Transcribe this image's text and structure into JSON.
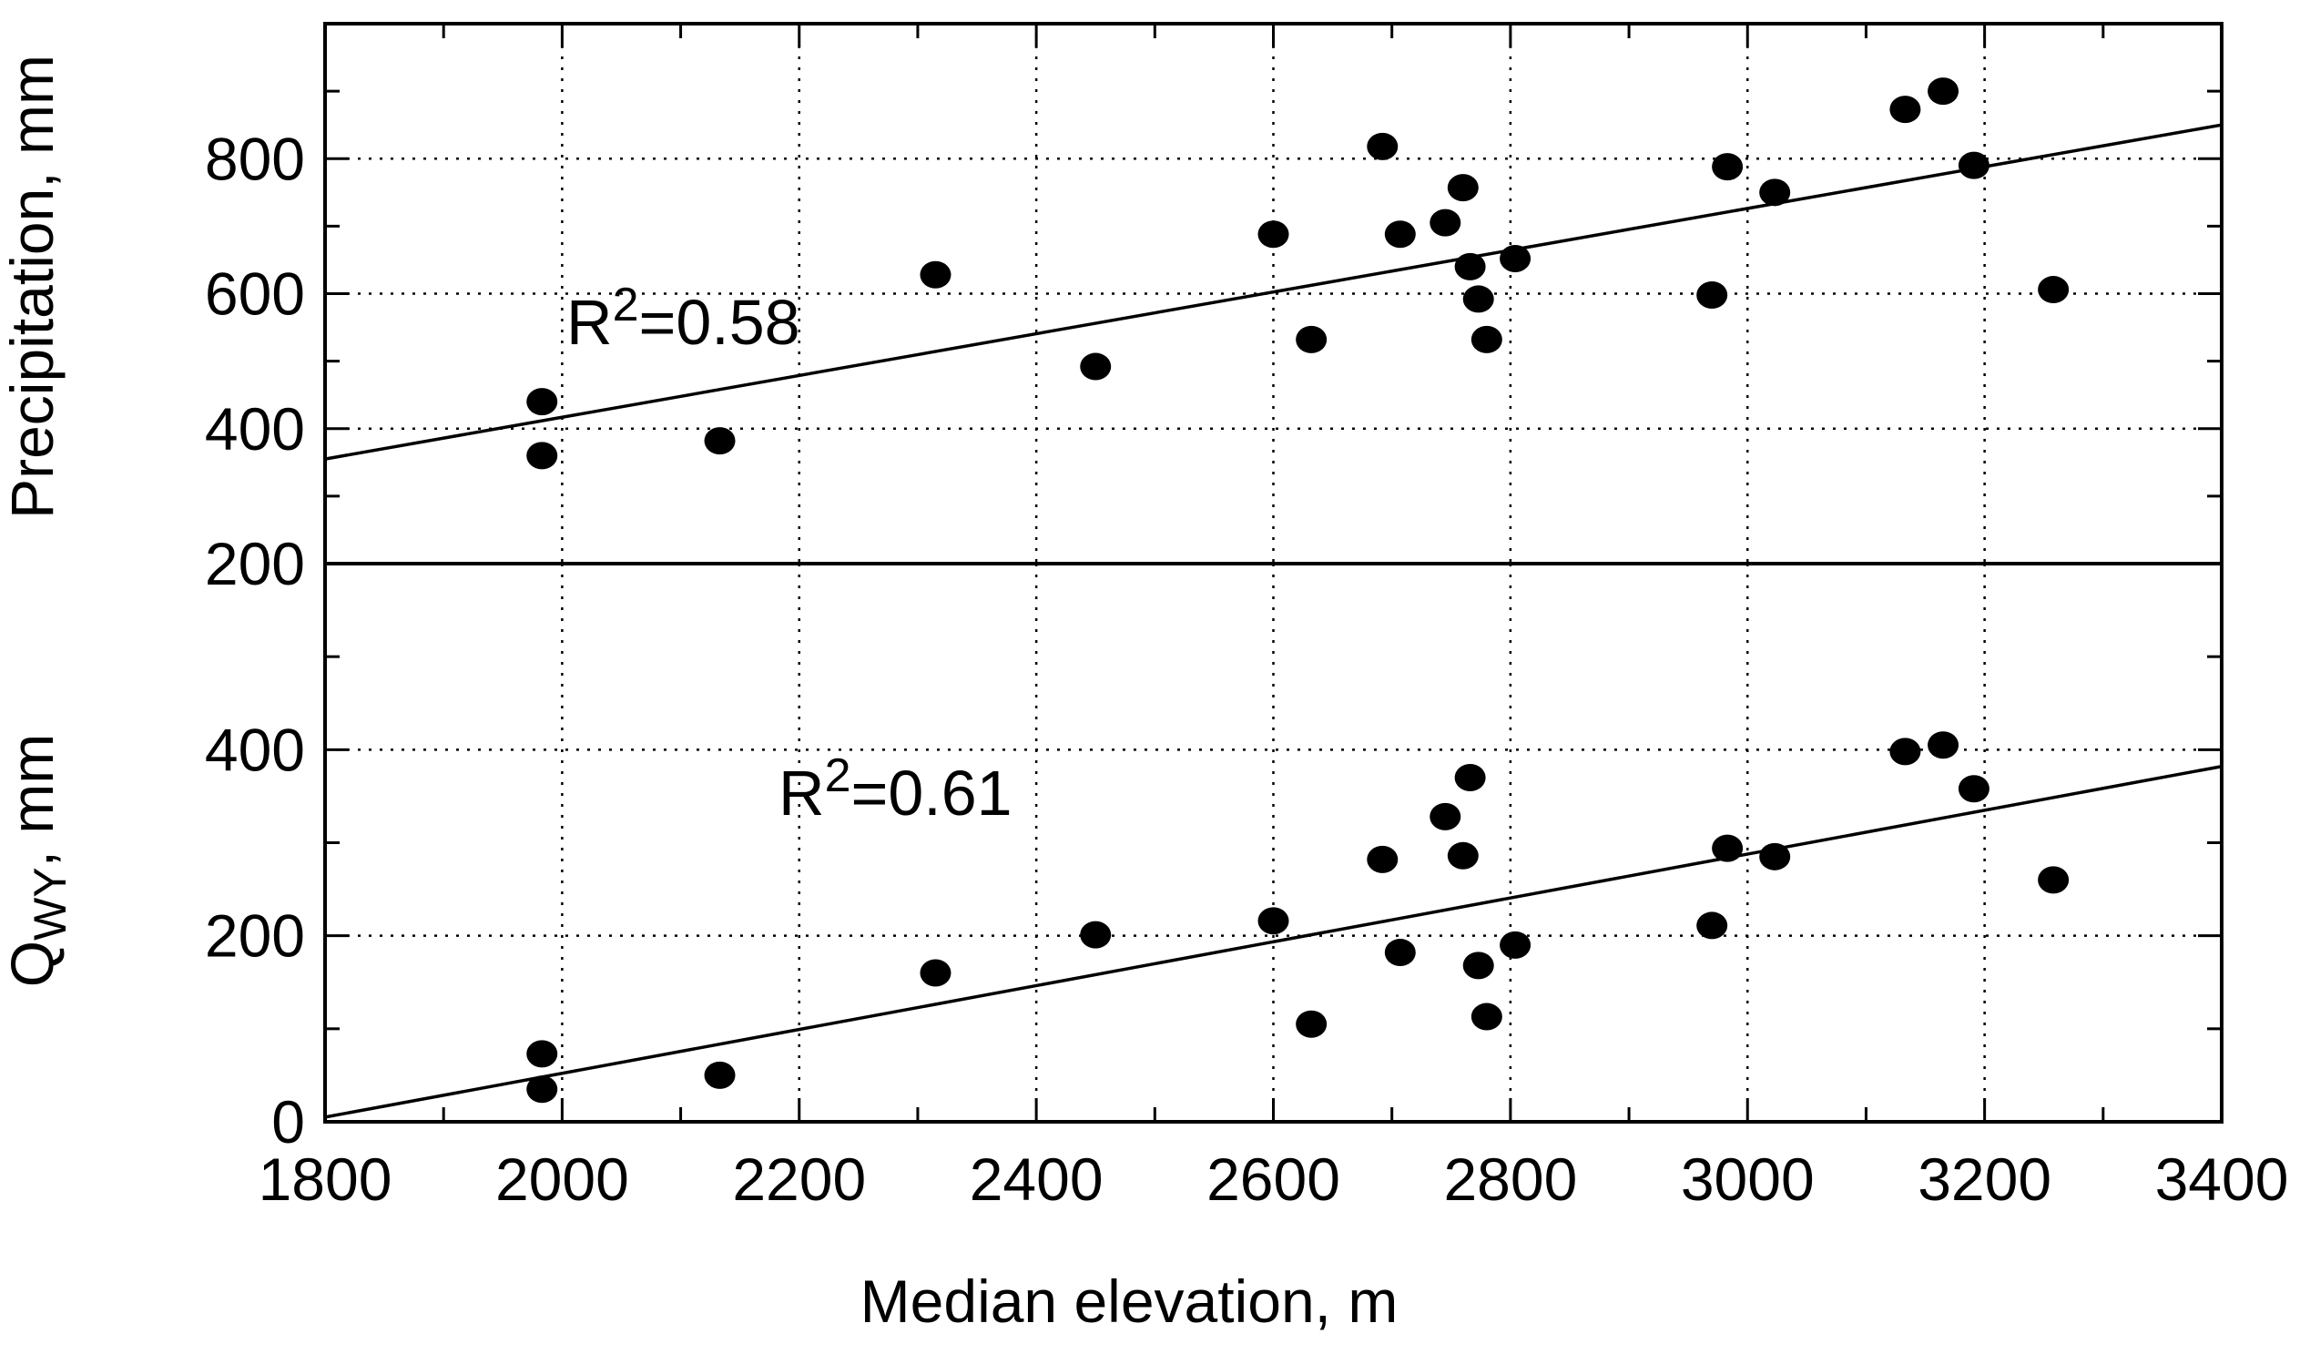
{
  "chart_data": [
    {
      "type": "scatter",
      "panel": "top",
      "ylabel": "Precipitation, mm",
      "xlim": [
        1800,
        3400
      ],
      "ylim": [
        200,
        1000
      ],
      "yticks": [
        "200",
        "400",
        "600",
        "800"
      ],
      "grid": true,
      "annotation": {
        "base": "R",
        "sup": "2",
        "tail": "=0.58"
      },
      "fit": {
        "x": [
          1800,
          3400
        ],
        "y": [
          355,
          850
        ]
      },
      "points": [
        {
          "x": 1983,
          "y": 440
        },
        {
          "x": 1983,
          "y": 360
        },
        {
          "x": 2133,
          "y": 382
        },
        {
          "x": 2315,
          "y": 628
        },
        {
          "x": 2450,
          "y": 492
        },
        {
          "x": 2600,
          "y": 688
        },
        {
          "x": 2632,
          "y": 532
        },
        {
          "x": 2692,
          "y": 818
        },
        {
          "x": 2707,
          "y": 688
        },
        {
          "x": 2745,
          "y": 705
        },
        {
          "x": 2760,
          "y": 757
        },
        {
          "x": 2766,
          "y": 640
        },
        {
          "x": 2773,
          "y": 592
        },
        {
          "x": 2780,
          "y": 532
        },
        {
          "x": 2804,
          "y": 652
        },
        {
          "x": 2970,
          "y": 598
        },
        {
          "x": 2983,
          "y": 788
        },
        {
          "x": 3023,
          "y": 750
        },
        {
          "x": 3133,
          "y": 873
        },
        {
          "x": 3165,
          "y": 900
        },
        {
          "x": 3191,
          "y": 790
        },
        {
          "x": 3258,
          "y": 606
        }
      ]
    },
    {
      "type": "scatter",
      "panel": "bottom",
      "ylabel": {
        "base": "Q",
        "sub": "WY",
        "tail": ", mm"
      },
      "xlabel": "Median elevation, m",
      "xlim": [
        1800,
        3400
      ],
      "ylim": [
        0,
        600
      ],
      "xticks": [
        "1800",
        "2000",
        "2200",
        "2400",
        "2600",
        "2800",
        "3000",
        "3200",
        "3400"
      ],
      "yticks": [
        "0",
        "200",
        "400"
      ],
      "grid": true,
      "annotation": {
        "base": "R",
        "sup": "2",
        "tail": "=0.61"
      },
      "fit": {
        "x": [
          1800,
          3400
        ],
        "y": [
          5,
          382
        ]
      },
      "points": [
        {
          "x": 1983,
          "y": 73
        },
        {
          "x": 1983,
          "y": 35
        },
        {
          "x": 2133,
          "y": 50
        },
        {
          "x": 2315,
          "y": 160
        },
        {
          "x": 2450,
          "y": 201
        },
        {
          "x": 2600,
          "y": 216
        },
        {
          "x": 2632,
          "y": 105
        },
        {
          "x": 2692,
          "y": 282
        },
        {
          "x": 2707,
          "y": 182
        },
        {
          "x": 2745,
          "y": 328
        },
        {
          "x": 2760,
          "y": 286
        },
        {
          "x": 2766,
          "y": 370
        },
        {
          "x": 2773,
          "y": 168
        },
        {
          "x": 2780,
          "y": 113
        },
        {
          "x": 2804,
          "y": 190
        },
        {
          "x": 2970,
          "y": 211
        },
        {
          "x": 2983,
          "y": 294
        },
        {
          "x": 3023,
          "y": 285
        },
        {
          "x": 3133,
          "y": 398
        },
        {
          "x": 3165,
          "y": 405
        },
        {
          "x": 3191,
          "y": 358
        },
        {
          "x": 3258,
          "y": 260
        }
      ]
    }
  ]
}
